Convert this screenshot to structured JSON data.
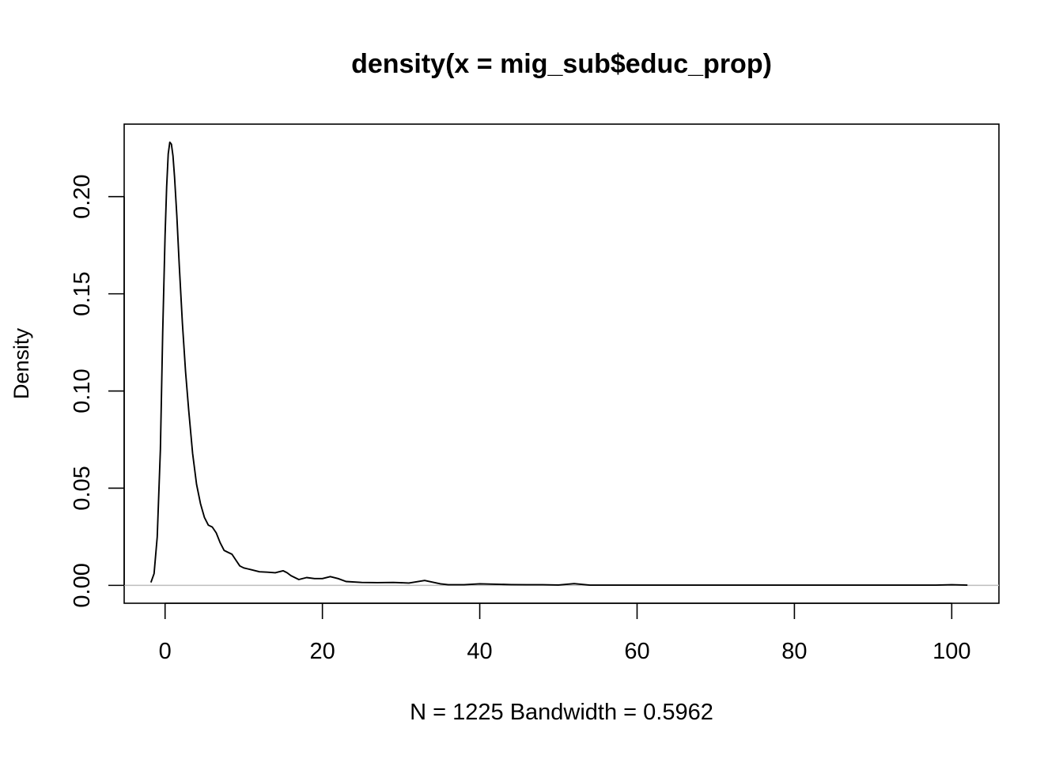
{
  "chart_data": {
    "type": "line",
    "title": "density(x = mig_sub$educ_prop)",
    "xlabel": "N = 1225   Bandwidth = 0.5962",
    "ylabel": "Density",
    "xlim": [
      -5.2,
      106
    ],
    "ylim": [
      -0.0092,
      0.2373
    ],
    "x_ticks": [
      0,
      20,
      40,
      60,
      80,
      100
    ],
    "y_ticks": [
      0.0,
      0.05,
      0.1,
      0.15,
      0.2
    ],
    "x_tick_labels": [
      "0",
      "20",
      "40",
      "60",
      "80",
      "100"
    ],
    "y_tick_labels": [
      "0.00",
      "0.05",
      "0.10",
      "0.15",
      "0.20"
    ],
    "zero_line": true,
    "grid": false,
    "series": [
      {
        "color": "#000000",
        "x": [
          -1.8,
          -1.4,
          -1.0,
          -0.6,
          -0.3,
          0.0,
          0.2,
          0.4,
          0.6,
          0.8,
          1.0,
          1.2,
          1.5,
          1.8,
          2.2,
          2.6,
          3.0,
          3.5,
          4.0,
          4.5,
          5.0,
          5.5,
          6.0,
          6.5,
          7.0,
          7.5,
          8.0,
          8.5,
          9.0,
          9.5,
          10.0,
          10.5,
          11.0,
          12.0,
          13.0,
          14.0,
          14.5,
          15.0,
          15.5,
          16.0,
          17.0,
          18.0,
          19.0,
          20.0,
          21.0,
          22.0,
          23.0,
          25.0,
          27.0,
          29.0,
          31.0,
          33.0,
          35.0,
          36.0,
          38.0,
          40.0,
          42.0,
          44.0,
          46.0,
          48.0,
          50.0,
          52.0,
          54.0,
          60.0,
          70.0,
          80.0,
          90.0,
          98.0,
          100.0,
          102.0
        ],
        "y": [
          0.0015,
          0.006,
          0.025,
          0.07,
          0.13,
          0.18,
          0.205,
          0.222,
          0.228,
          0.227,
          0.221,
          0.21,
          0.19,
          0.165,
          0.135,
          0.11,
          0.09,
          0.068,
          0.052,
          0.042,
          0.035,
          0.031,
          0.03,
          0.027,
          0.022,
          0.018,
          0.017,
          0.016,
          0.013,
          0.01,
          0.009,
          0.0085,
          0.008,
          0.007,
          0.0068,
          0.0065,
          0.007,
          0.0075,
          0.0065,
          0.005,
          0.003,
          0.004,
          0.0035,
          0.0035,
          0.0045,
          0.0035,
          0.002,
          0.0015,
          0.0014,
          0.0015,
          0.0012,
          0.0025,
          0.0008,
          0.0003,
          0.0003,
          0.0008,
          0.0006,
          0.0004,
          0.0003,
          0.0003,
          0.0002,
          0.0009,
          0.0001,
          0.0001,
          0.0001,
          0.0001,
          0.0001,
          0.0001,
          0.0003,
          0.0001
        ]
      }
    ]
  }
}
